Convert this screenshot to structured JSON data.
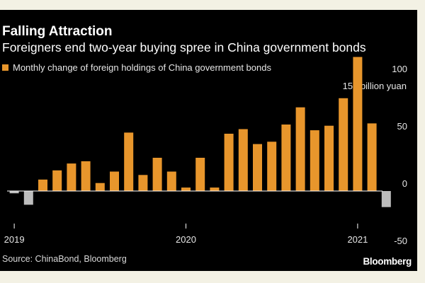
{
  "header": {
    "title": "Falling Attraction",
    "subtitle": "Foreigners end two-year buying spree in China government bonds"
  },
  "footer": {
    "source": "Source: ChinaBond, Bloomberg",
    "brand": "Bloomberg"
  },
  "colors": {
    "positive": "#e8962c",
    "negative": "#bdbdbd",
    "background": "#000000",
    "axis": "#ffffff",
    "grid": "#3a3a3a"
  },
  "chart_data": {
    "type": "bar",
    "title": "Falling Attraction",
    "subtitle": "Foreigners end two-year buying spree in China government bonds",
    "legend": [
      "Monthly change of foreign holdings of China government bonds"
    ],
    "legend_placement": "top-left",
    "y_unit_label": "150 billion yuan",
    "y_ticks": [
      150,
      100,
      50,
      0,
      -50
    ],
    "y_tick_labels": [
      "150 billion yuan",
      "100",
      "50",
      "0",
      "-50"
    ],
    "ylim": [
      -50,
      150
    ],
    "x_tick_labels": [
      "2019",
      "2020",
      "2021"
    ],
    "x_tick_months": [
      "2019-01",
      "2020-01",
      "2021-01"
    ],
    "grid": false,
    "categories": [
      "2019-01",
      "2019-02",
      "2019-03",
      "2019-04",
      "2019-05",
      "2019-06",
      "2019-07",
      "2019-08",
      "2019-09",
      "2019-10",
      "2019-11",
      "2019-12",
      "2020-01",
      "2020-02",
      "2020-03",
      "2020-04",
      "2020-05",
      "2020-06",
      "2020-07",
      "2020-08",
      "2020-09",
      "2020-10",
      "2020-11",
      "2020-12",
      "2021-01",
      "2021-02",
      "2021-03"
    ],
    "values": [
      -2,
      -12,
      10,
      18,
      24,
      26,
      7,
      17,
      51,
      14,
      29,
      17,
      3,
      29,
      3,
      50,
      54,
      41,
      43,
      58,
      73,
      53,
      57,
      81,
      117,
      59,
      -14
    ]
  }
}
